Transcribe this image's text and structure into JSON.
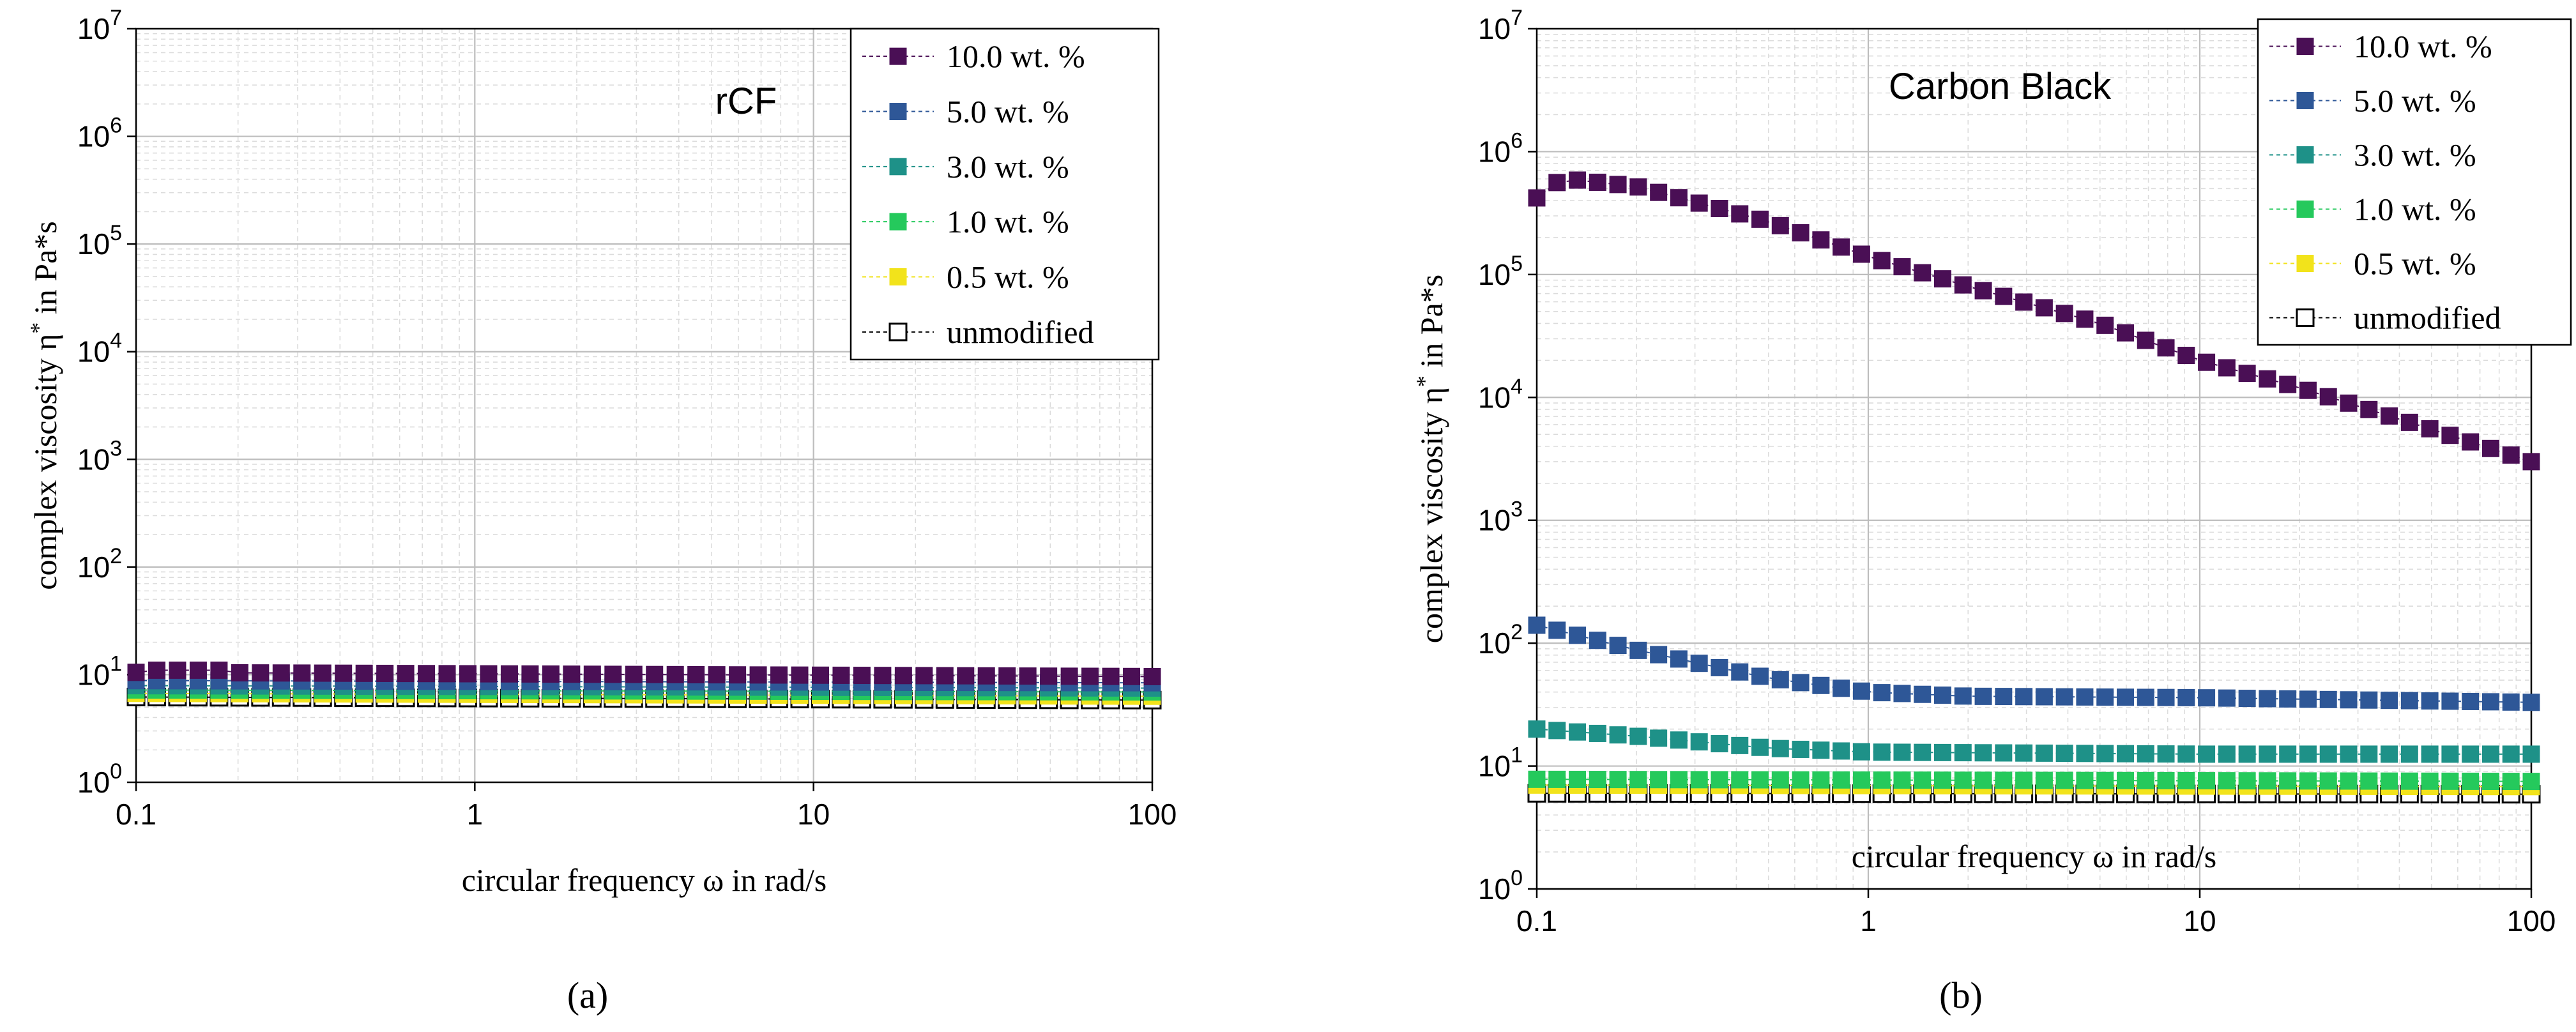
{
  "figure": {
    "caption_a": "(a)",
    "caption_b": "(b)"
  },
  "chart_data": [
    {
      "type": "scatter",
      "panel": "a",
      "annotation": "rCF",
      "xlabel": "circular frequency ω in rad/s",
      "ylabel_main": "complex viscosity η",
      "ylabel_sup": "*",
      "ylabel_tail": " in Pa*s",
      "xscale": "log",
      "yscale": "log",
      "xlim": [
        0.1,
        100
      ],
      "ylim": [
        1,
        10000000
      ],
      "xticks": [
        {
          "value": 0.1,
          "label": "0.1"
        },
        {
          "value": 1,
          "label": "1"
        },
        {
          "value": 10,
          "label": "10"
        },
        {
          "value": 100,
          "label": "100"
        }
      ],
      "yticks": [
        {
          "value": 1,
          "base": "10",
          "exp": "0"
        },
        {
          "value": 10,
          "base": "10",
          "exp": "1"
        },
        {
          "value": 100,
          "base": "10",
          "exp": "2"
        },
        {
          "value": 1000,
          "base": "10",
          "exp": "3"
        },
        {
          "value": 10000,
          "base": "10",
          "exp": "4"
        },
        {
          "value": 100000,
          "base": "10",
          "exp": "5"
        },
        {
          "value": 1000000,
          "base": "10",
          "exp": "6"
        },
        {
          "value": 10000000,
          "base": "10",
          "exp": "7"
        }
      ],
      "grid": true,
      "legend_position": "top-right",
      "series": [
        {
          "name": "10.0 wt. %",
          "color": "#4a0f55",
          "filled": true,
          "y_start": 10.5,
          "y_end": 9.6,
          "peak": 11
        },
        {
          "name": "5.0 wt. %",
          "color": "#2e5797",
          "filled": true,
          "y_start": 8.8,
          "y_end": 8.4
        },
        {
          "name": "3.0 wt. %",
          "color": "#1e9188",
          "filled": true,
          "y_start": 7.9,
          "y_end": 7.5
        },
        {
          "name": "1.0 wt. %",
          "color": "#25c95c",
          "filled": true,
          "y_start": 7.2,
          "y_end": 6.9
        },
        {
          "name": "0.5 wt. %",
          "color": "#f2e31b",
          "filled": true,
          "y_start": 6.7,
          "y_end": 6.3
        },
        {
          "name": "unmodified",
          "color": "#000000",
          "filled": false,
          "y_start": 6.2,
          "y_end": 5.8
        }
      ]
    },
    {
      "type": "scatter",
      "panel": "b",
      "annotation": "Carbon Black",
      "xlabel": "circular frequency ω in rad/s",
      "ylabel_main": "complex viscosity η",
      "ylabel_sup": "*",
      "ylabel_tail": " in Pa*s",
      "xscale": "log",
      "yscale": "log",
      "xlim": [
        0.1,
        100
      ],
      "ylim": [
        1,
        10000000
      ],
      "xticks": [
        {
          "value": 0.1,
          "label": "0.1"
        },
        {
          "value": 1,
          "label": "1"
        },
        {
          "value": 10,
          "label": "10"
        },
        {
          "value": 100,
          "label": "100"
        }
      ],
      "yticks": [
        {
          "value": 1,
          "base": "10",
          "exp": "0"
        },
        {
          "value": 10,
          "base": "10",
          "exp": "1"
        },
        {
          "value": 100,
          "base": "10",
          "exp": "2"
        },
        {
          "value": 1000,
          "base": "10",
          "exp": "3"
        },
        {
          "value": 10000,
          "base": "10",
          "exp": "4"
        },
        {
          "value": 100000,
          "base": "10",
          "exp": "5"
        },
        {
          "value": 1000000,
          "base": "10",
          "exp": "6"
        },
        {
          "value": 10000000,
          "base": "10",
          "exp": "7"
        }
      ],
      "grid": true,
      "legend_position": "top-right",
      "series": [
        {
          "name": "10.0 wt. %",
          "color": "#4a0f55",
          "filled": true,
          "points": [
            [
              0.1,
              420000
            ],
            [
              0.115,
              560000
            ],
            [
              0.13,
              590000
            ],
            [
              0.2,
              520000
            ],
            [
              0.5,
              270000
            ],
            [
              1,
              140000
            ],
            [
              2,
              80000
            ],
            [
              5,
              40000
            ],
            [
              10,
              20000
            ],
            [
              20,
              12000
            ],
            [
              50,
              5500
            ],
            [
              100,
              3000
            ]
          ]
        },
        {
          "name": "5.0 wt. %",
          "color": "#2e5797",
          "filled": true,
          "points": [
            [
              0.1,
              140
            ],
            [
              0.2,
              88
            ],
            [
              0.5,
              52
            ],
            [
              1,
              40
            ],
            [
              2,
              37
            ],
            [
              10,
              36
            ],
            [
              100,
              33
            ]
          ]
        },
        {
          "name": "3.0 wt. %",
          "color": "#1e9188",
          "filled": true,
          "points": [
            [
              0.1,
              20
            ],
            [
              0.2,
              17.5
            ],
            [
              0.5,
              14
            ],
            [
              1,
              13
            ],
            [
              10,
              12.5
            ],
            [
              100,
              12.5
            ]
          ]
        },
        {
          "name": "1.0 wt. %",
          "color": "#25c95c",
          "filled": true,
          "points": [
            [
              0.1,
              7.8
            ],
            [
              100,
              7.5
            ]
          ]
        },
        {
          "name": "0.5 wt. %",
          "color": "#f2e31b",
          "filled": true,
          "points": [
            [
              0.1,
              7
            ],
            [
              100,
              6.8
            ]
          ]
        },
        {
          "name": "unmodified",
          "color": "#000000",
          "filled": false,
          "points": [
            [
              0.1,
              6.0
            ],
            [
              100,
              5.9
            ]
          ]
        }
      ]
    }
  ]
}
